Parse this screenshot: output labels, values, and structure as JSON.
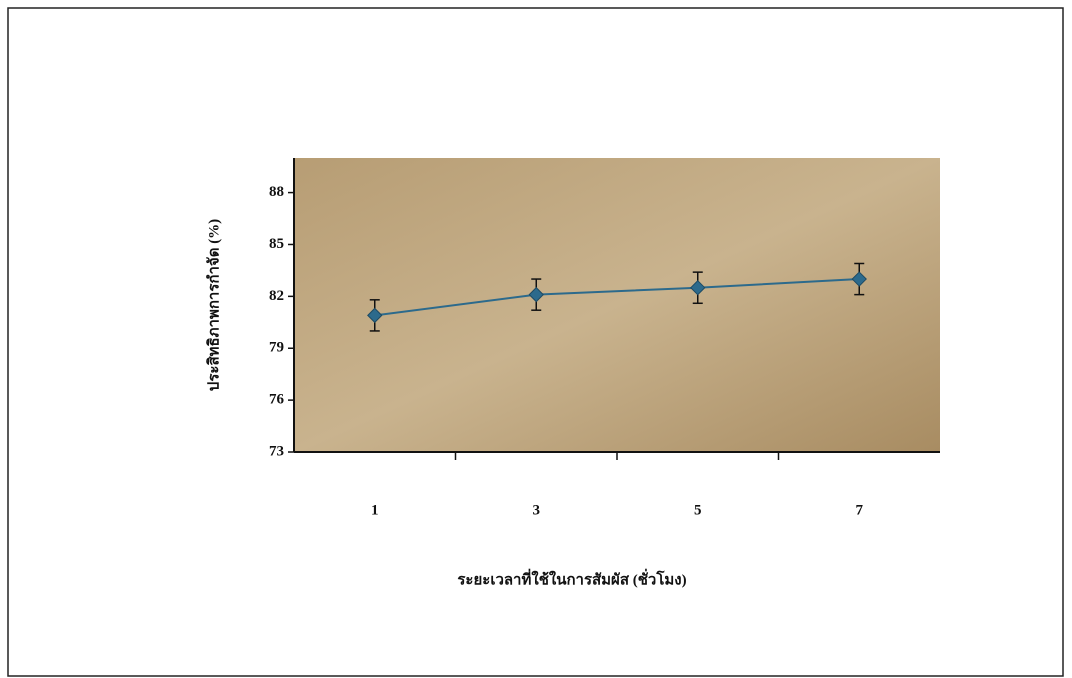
{
  "chart_data": {
    "type": "line",
    "x_label": "ระยะเวลาที่ใช้ในการสัมผัส (ชั่วโมง)",
    "y_label": "ประสิทธิภาพการกำจัด (%)",
    "categories": [
      "1",
      "3",
      "5",
      "7"
    ],
    "series": [
      {
        "color": "#2c6a8c",
        "values": [
          80.9,
          82.1,
          82.5,
          83.0
        ],
        "errors": [
          0.9,
          0.9,
          0.9,
          0.9
        ]
      }
    ],
    "ylim": [
      73,
      90
    ],
    "yticks": [
      73,
      76,
      79,
      82,
      85,
      88
    ]
  }
}
